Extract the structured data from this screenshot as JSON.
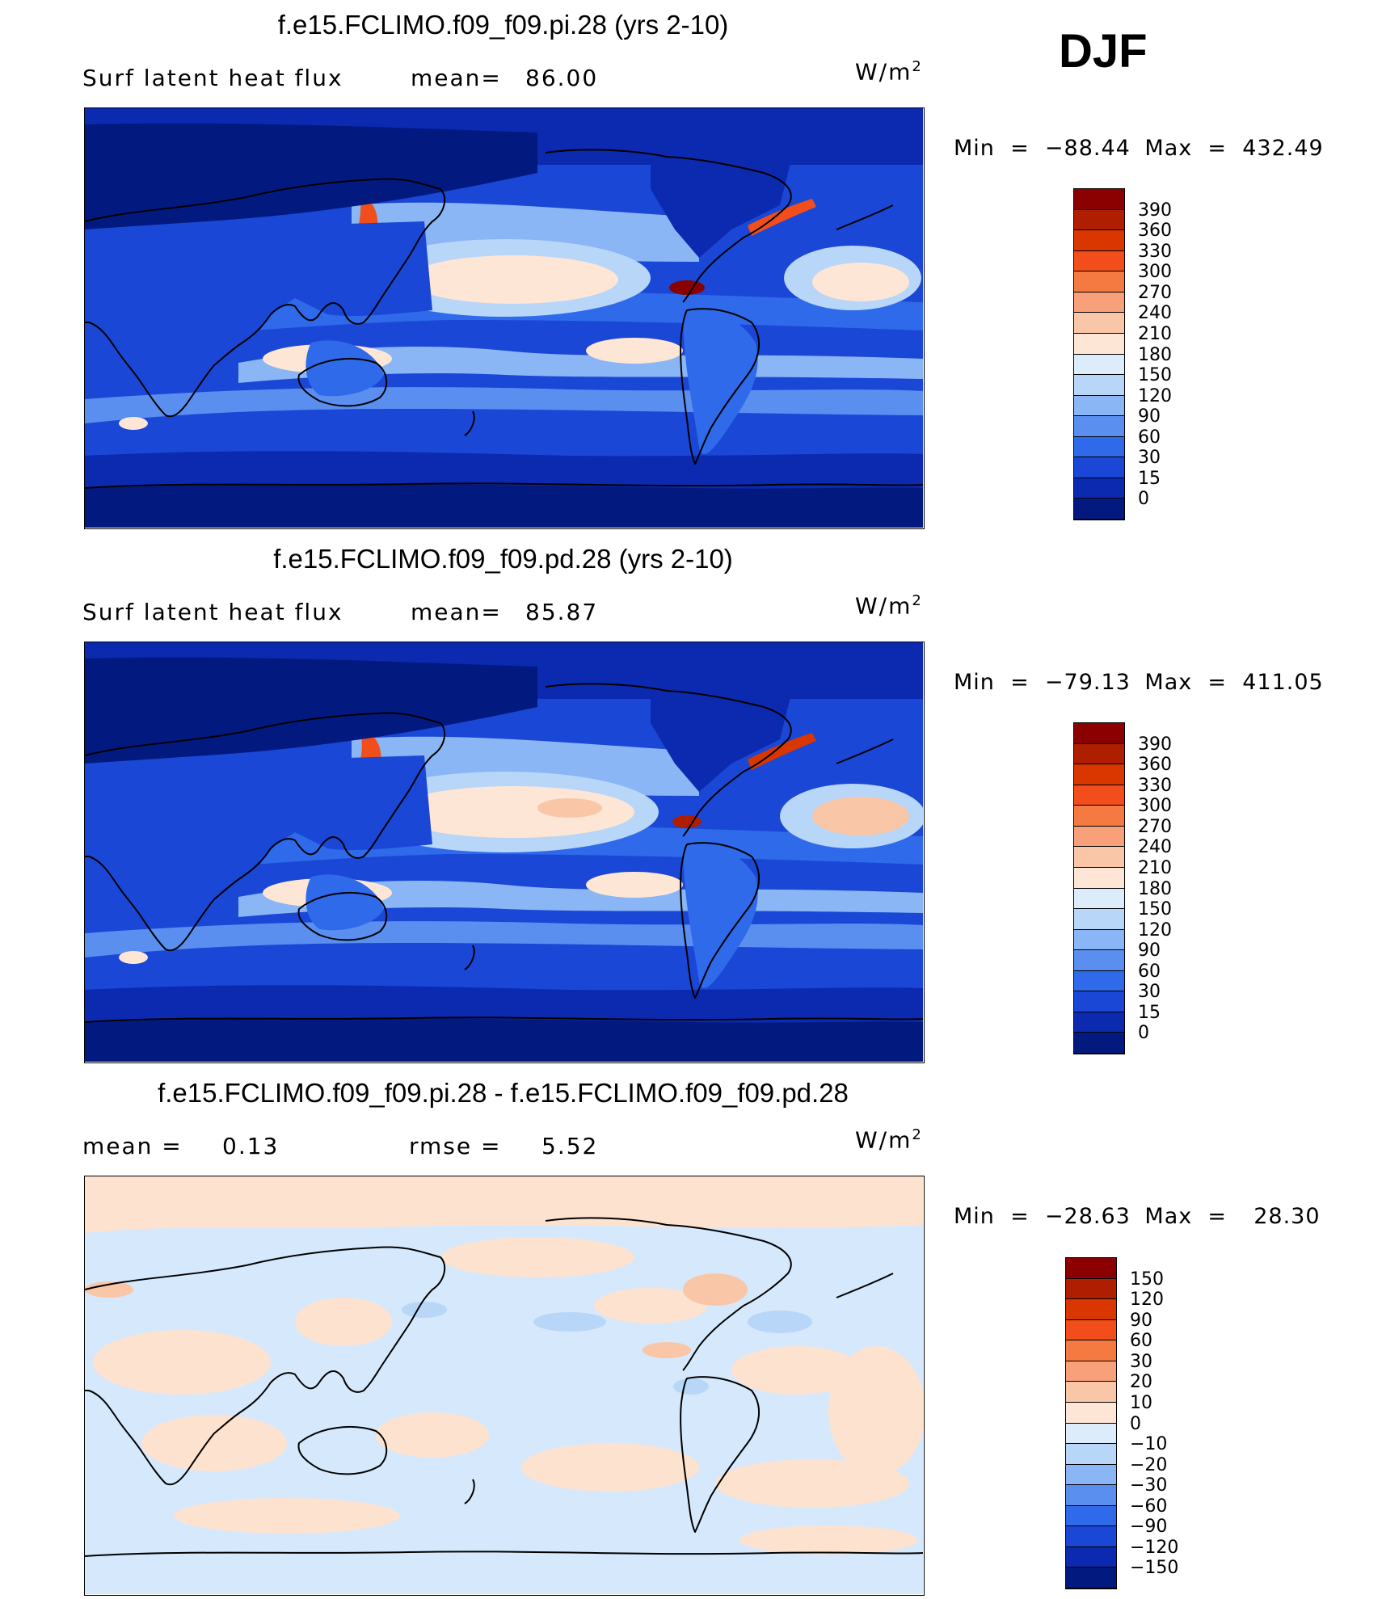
{
  "season_label": "DJF",
  "panels": [
    {
      "title": "f.e15.FCLIMO.f09_f09.pi.28 (yrs 2-10)",
      "subtitle_left": "Surf latent heat flux",
      "stat_label": "mean=",
      "stat_value": "86.00",
      "units_base": "W/m",
      "units_exp": "2",
      "min_label": "Min",
      "min_value": "−88.44",
      "max_label": "Max",
      "max_value": "432.49",
      "colorbar_levels": [
        "390",
        "360",
        "330",
        "300",
        "270",
        "240",
        "210",
        "180",
        "150",
        "120",
        "90",
        "60",
        "30",
        "15",
        "0"
      ],
      "colorbar_colors": [
        "#8b0000",
        "#b01e00",
        "#d93600",
        "#f24e1c",
        "#f57a42",
        "#f7a07a",
        "#f9c6a8",
        "#fde6d6",
        "#dcecfb",
        "#b8d6f8",
        "#8ab6f5",
        "#5a8ff0",
        "#2f6aea",
        "#1a47d6",
        "#0b2ab0",
        "#021a80"
      ]
    },
    {
      "title": "f.e15.FCLIMO.f09_f09.pd.28 (yrs 2-10)",
      "subtitle_left": "Surf latent heat flux",
      "stat_label": "mean=",
      "stat_value": "85.87",
      "units_base": "W/m",
      "units_exp": "2",
      "min_label": "Min",
      "min_value": "−79.13",
      "max_label": "Max",
      "max_value": "411.05",
      "colorbar_levels": [
        "390",
        "360",
        "330",
        "300",
        "270",
        "240",
        "210",
        "180",
        "150",
        "120",
        "90",
        "60",
        "30",
        "15",
        "0"
      ],
      "colorbar_colors": [
        "#8b0000",
        "#b01e00",
        "#d93600",
        "#f24e1c",
        "#f57a42",
        "#f7a07a",
        "#f9c6a8",
        "#fde6d6",
        "#dcecfb",
        "#b8d6f8",
        "#8ab6f5",
        "#5a8ff0",
        "#2f6aea",
        "#1a47d6",
        "#0b2ab0",
        "#021a80"
      ]
    },
    {
      "title": "f.e15.FCLIMO.f09_f09.pi.28 - f.e15.FCLIMO.f09_f09.pd.28",
      "subtitle_left": "mean =",
      "subtitle_left_value": "0.13",
      "stat_label": "rmse =",
      "stat_value": "5.52",
      "units_base": "W/m",
      "units_exp": "2",
      "min_label": "Min",
      "min_value": "−28.63",
      "max_label": "Max",
      "max_value": "28.30",
      "colorbar_levels": [
        "150",
        "120",
        "90",
        "60",
        "30",
        "20",
        "10",
        "0",
        "−10",
        "−20",
        "−30",
        "−60",
        "−90",
        "−120",
        "−150"
      ],
      "colorbar_colors": [
        "#8b0000",
        "#b01e00",
        "#d93600",
        "#f24e1c",
        "#f57a42",
        "#f7a07a",
        "#f9c6a8",
        "#fde6d6",
        "#dcecfb",
        "#b8d6f8",
        "#8ab6f5",
        "#5a8ff0",
        "#2f6aea",
        "#1a47d6",
        "#0b2ab0",
        "#021a80"
      ]
    }
  ],
  "map_colors": {
    "ocean_deep": "#021a80",
    "ocean_mid": "#1a47d6",
    "ocean_light": "#5a8ff0",
    "pale_blue": "#b8d6f8",
    "cream": "#fde6d6",
    "peach": "#f7a07a",
    "red": "#d93600",
    "diff_bg": "#d6e8fb",
    "diff_warm": "#fde2d0"
  }
}
